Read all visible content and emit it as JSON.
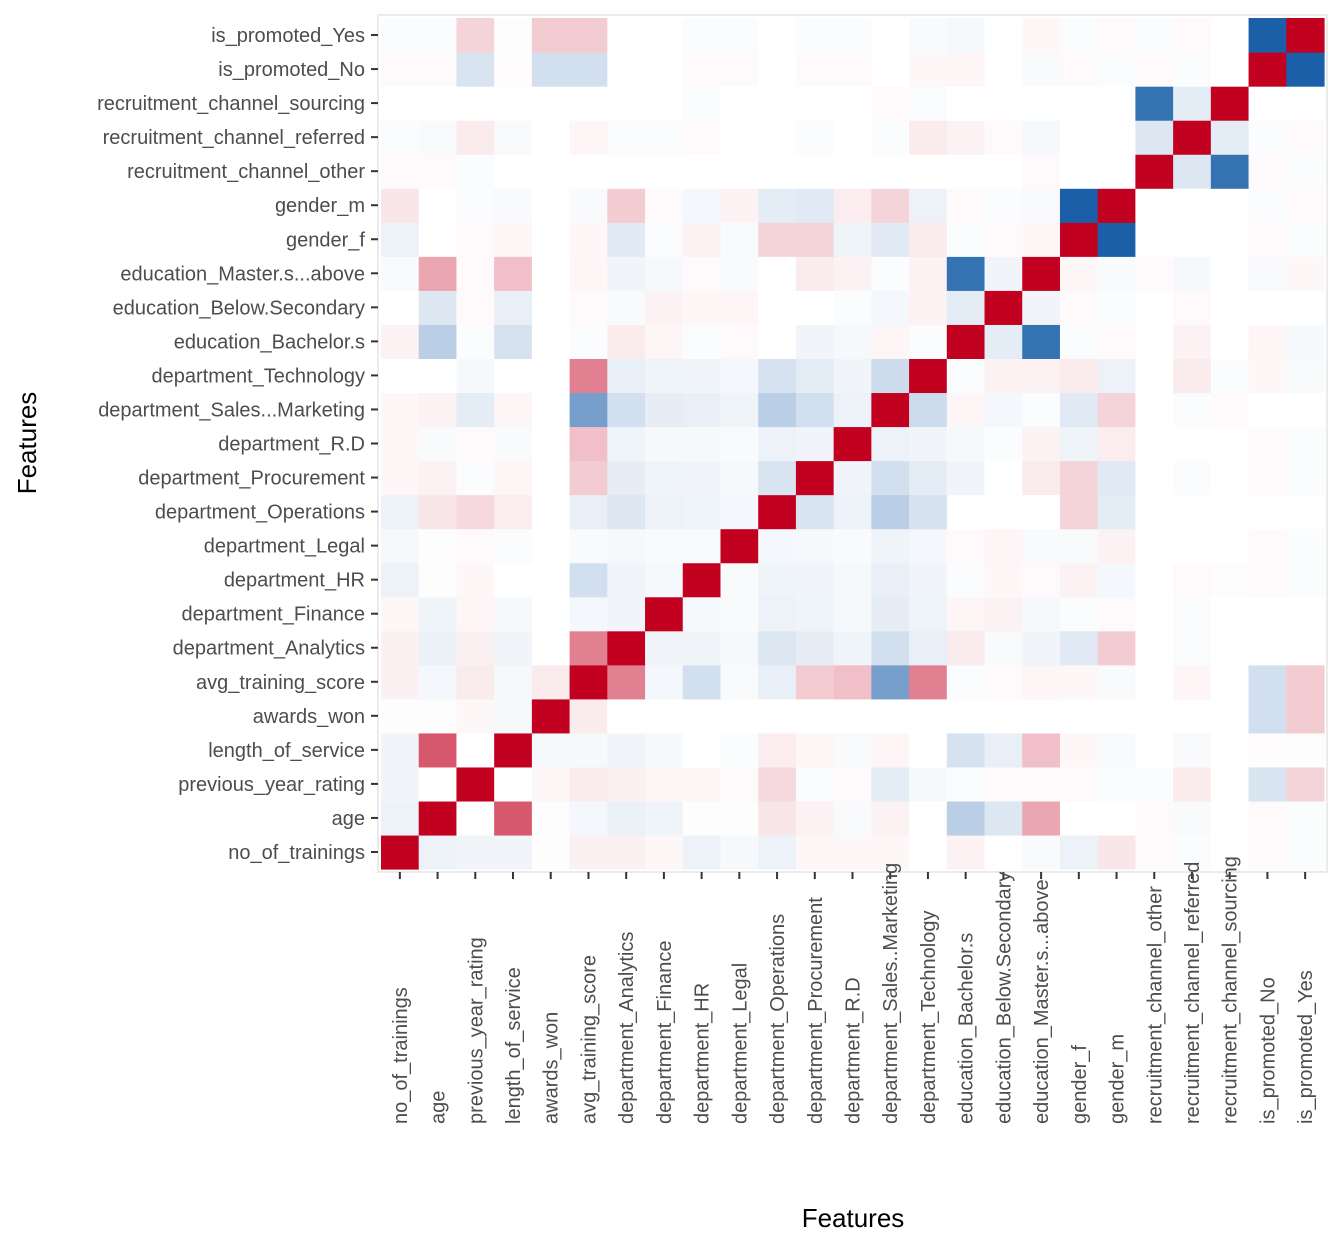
{
  "chart_data": {
    "type": "heatmap",
    "xlabel": "Features",
    "ylabel": "Features",
    "color_scale": {
      "low": "#1a5fa8",
      "mid": "#ffffff",
      "high": "#c20020",
      "range": [
        -1,
        1
      ]
    },
    "grid": false,
    "features": [
      "no_of_trainings",
      "age",
      "previous_year_rating",
      "length_of_service",
      "awards_won",
      "avg_training_score",
      "department_Analytics",
      "department_Finance",
      "department_HR",
      "department_Legal",
      "department_Operations",
      "department_Procurement",
      "department_R.D",
      "department_Sales...Marketing",
      "department_Technology",
      "education_Bachelor.s",
      "education_Below.Secondary",
      "education_Master.s...above",
      "gender_f",
      "gender_m",
      "recruitment_channel_other",
      "recruitment_channel_referred",
      "recruitment_channel_sourcing",
      "is_promoted_No",
      "is_promoted_Yes"
    ],
    "x_tick_labels": [
      "no_of_trainings",
      "age",
      "previous_year_rating",
      "length_of_service",
      "awards_won",
      "avg_training_score",
      "department_Analytics",
      "department_Finance",
      "department_HR",
      "department_Legal",
      "department_Operations",
      "department_Procurement",
      "department_R.D",
      "department_Sales..Marketing",
      "department_Technology",
      "education_Bachelor.s",
      "education_Below.Secondary",
      "education_Master.s...above",
      "gender_f",
      "gender_m",
      "recruitment_channel_other",
      "recruitment_channel_referred",
      "recruitment_channel_sourcing",
      "is_promoted_No",
      "is_promoted_Yes"
    ],
    "matrix": [
      [
        1.0,
        -0.08,
        -0.06,
        -0.06,
        -0.01,
        0.06,
        0.06,
        0.03,
        -0.08,
        -0.04,
        -0.08,
        0.03,
        0.03,
        0.03,
        0.0,
        0.05,
        0.0,
        -0.03,
        -0.08,
        0.1,
        0.02,
        -0.02,
        0.0,
        0.02,
        -0.02
      ],
      [
        -0.08,
        1.0,
        0.0,
        0.66,
        -0.01,
        -0.05,
        -0.09,
        -0.07,
        -0.01,
        -0.01,
        0.1,
        0.05,
        -0.03,
        0.05,
        0.0,
        -0.3,
        -0.15,
        0.35,
        0.0,
        0.0,
        0.02,
        -0.03,
        0.0,
        0.02,
        -0.02
      ],
      [
        -0.06,
        0.0,
        1.0,
        0.0,
        0.03,
        0.08,
        0.06,
        0.04,
        0.03,
        0.02,
        0.15,
        -0.02,
        0.02,
        -0.12,
        -0.04,
        -0.02,
        0.02,
        0.02,
        0.02,
        -0.02,
        -0.02,
        0.08,
        0.0,
        -0.17,
        0.17
      ],
      [
        -0.06,
        0.66,
        0.0,
        1.0,
        -0.04,
        -0.04,
        -0.06,
        -0.04,
        0.0,
        -0.02,
        0.07,
        0.04,
        -0.03,
        0.04,
        0.0,
        -0.18,
        -0.1,
        0.25,
        0.03,
        -0.03,
        0.0,
        -0.03,
        0.0,
        0.01,
        -0.01
      ],
      [
        -0.01,
        -0.01,
        0.03,
        -0.04,
        1.0,
        0.08,
        0.0,
        0.0,
        0.0,
        0.0,
        0.0,
        0.0,
        0.0,
        0.0,
        0.0,
        0.0,
        0.0,
        0.0,
        0.0,
        0.0,
        0.0,
        0.0,
        0.0,
        -0.2,
        0.2
      ],
      [
        0.06,
        -0.05,
        0.08,
        -0.04,
        0.08,
        1.0,
        0.5,
        -0.05,
        -0.2,
        -0.03,
        -0.1,
        0.2,
        0.25,
        -0.6,
        0.5,
        -0.02,
        0.02,
        0.04,
        0.03,
        -0.03,
        0.0,
        0.04,
        0.0,
        -0.2,
        0.2
      ],
      [
        0.06,
        -0.09,
        0.06,
        -0.06,
        0.0,
        0.5,
        1.0,
        -0.06,
        -0.06,
        -0.04,
        -0.15,
        -0.11,
        -0.07,
        -0.2,
        -0.1,
        0.08,
        -0.03,
        -0.06,
        -0.13,
        0.2,
        0.0,
        -0.02,
        0.0,
        0.0,
        0.0
      ],
      [
        0.03,
        -0.07,
        0.04,
        -0.04,
        0.0,
        -0.05,
        -0.06,
        1.0,
        -0.04,
        -0.03,
        -0.08,
        -0.07,
        -0.04,
        -0.11,
        -0.07,
        0.04,
        0.05,
        -0.04,
        -0.02,
        0.02,
        0.0,
        -0.02,
        0.0,
        0.0,
        0.0
      ],
      [
        -0.08,
        -0.01,
        0.03,
        0.0,
        0.0,
        -0.2,
        -0.06,
        -0.04,
        1.0,
        -0.03,
        -0.07,
        -0.06,
        -0.04,
        -0.1,
        -0.06,
        -0.02,
        0.03,
        0.02,
        0.05,
        -0.05,
        0.0,
        0.02,
        -0.01,
        0.02,
        -0.02
      ],
      [
        -0.04,
        -0.01,
        0.02,
        -0.02,
        0.0,
        -0.03,
        -0.04,
        -0.03,
        -0.03,
        1.0,
        -0.05,
        -0.04,
        -0.03,
        -0.07,
        -0.05,
        0.02,
        0.04,
        -0.03,
        -0.03,
        0.05,
        0.0,
        0.0,
        0.0,
        0.02,
        -0.02
      ],
      [
        -0.08,
        0.1,
        0.15,
        0.07,
        0.0,
        -0.1,
        -0.15,
        -0.08,
        -0.07,
        -0.05,
        1.0,
        -0.17,
        -0.08,
        -0.3,
        -0.18,
        0.0,
        0.0,
        0.0,
        0.17,
        -0.12,
        0.0,
        0.0,
        0.0,
        0.0,
        0.0
      ],
      [
        0.03,
        0.05,
        -0.02,
        0.04,
        0.0,
        0.2,
        -0.11,
        -0.07,
        -0.06,
        -0.04,
        -0.17,
        1.0,
        -0.06,
        -0.2,
        -0.12,
        -0.06,
        0.0,
        0.08,
        0.17,
        -0.13,
        0.0,
        -0.02,
        0.0,
        0.02,
        -0.02
      ],
      [
        0.03,
        -0.03,
        0.02,
        -0.03,
        0.0,
        0.25,
        -0.07,
        -0.04,
        -0.04,
        -0.03,
        -0.08,
        -0.06,
        1.0,
        -0.08,
        -0.06,
        -0.04,
        -0.02,
        0.05,
        -0.07,
        0.07,
        0.0,
        0.0,
        0.0,
        0.02,
        -0.02
      ],
      [
        0.03,
        0.05,
        -0.12,
        0.04,
        0.0,
        -0.6,
        -0.2,
        -0.11,
        -0.1,
        -0.07,
        -0.3,
        -0.2,
        -0.08,
        1.0,
        -0.22,
        0.04,
        -0.05,
        -0.02,
        -0.13,
        0.17,
        0.0,
        -0.02,
        0.02,
        0.0,
        0.0
      ],
      [
        0.0,
        0.0,
        -0.04,
        0.0,
        0.0,
        0.5,
        -0.1,
        -0.07,
        -0.06,
        -0.05,
        -0.18,
        -0.12,
        -0.06,
        -0.22,
        1.0,
        -0.02,
        0.05,
        0.05,
        0.08,
        -0.08,
        0.0,
        0.08,
        -0.02,
        0.03,
        -0.03
      ],
      [
        0.05,
        -0.3,
        -0.02,
        -0.18,
        0.0,
        -0.02,
        0.08,
        0.04,
        -0.02,
        0.02,
        0.0,
        -0.06,
        -0.04,
        0.04,
        -0.02,
        1.0,
        -0.12,
        -0.88,
        -0.02,
        0.02,
        0.0,
        0.05,
        0.0,
        0.04,
        -0.04
      ],
      [
        0.0,
        -0.15,
        0.02,
        -0.1,
        0.0,
        0.02,
        -0.03,
        0.05,
        0.03,
        0.04,
        0.0,
        0.0,
        -0.02,
        -0.05,
        0.05,
        -0.12,
        1.0,
        -0.06,
        0.02,
        -0.02,
        0.0,
        0.02,
        0.0,
        0.0,
        0.0
      ],
      [
        -0.03,
        0.35,
        0.02,
        0.25,
        0.0,
        0.04,
        -0.06,
        -0.04,
        0.02,
        -0.03,
        0.0,
        0.08,
        0.05,
        -0.02,
        0.05,
        -0.88,
        -0.06,
        1.0,
        0.03,
        -0.03,
        0.02,
        -0.04,
        0.0,
        -0.03,
        0.03
      ],
      [
        -0.08,
        0.0,
        0.02,
        0.03,
        0.0,
        0.03,
        -0.13,
        -0.02,
        0.05,
        -0.03,
        0.17,
        0.17,
        -0.07,
        -0.13,
        0.08,
        -0.02,
        0.02,
        0.03,
        1.0,
        -1.0,
        0.0,
        0.0,
        0.0,
        0.02,
        -0.02
      ],
      [
        0.1,
        0.0,
        -0.02,
        -0.03,
        0.0,
        -0.03,
        0.2,
        0.02,
        -0.05,
        0.05,
        -0.12,
        -0.13,
        0.07,
        0.17,
        -0.08,
        0.02,
        -0.02,
        -0.03,
        -1.0,
        1.0,
        0.0,
        0.0,
        0.0,
        -0.02,
        0.02
      ],
      [
        0.02,
        0.02,
        -0.02,
        0.0,
        0.0,
        0.0,
        0.0,
        0.0,
        0.0,
        0.0,
        0.0,
        0.0,
        0.0,
        0.0,
        0.0,
        0.0,
        0.0,
        0.02,
        0.0,
        0.0,
        1.0,
        -0.15,
        -0.88,
        0.02,
        -0.02
      ],
      [
        -0.02,
        -0.03,
        0.08,
        -0.03,
        0.0,
        0.04,
        -0.02,
        -0.02,
        0.02,
        0.0,
        0.0,
        -0.02,
        0.0,
        -0.02,
        0.08,
        0.05,
        0.02,
        -0.04,
        0.0,
        0.0,
        -0.15,
        1.0,
        -0.12,
        -0.02,
        0.02
      ],
      [
        0.0,
        0.0,
        0.0,
        0.0,
        0.0,
        0.0,
        0.0,
        0.0,
        -0.02,
        0.0,
        0.0,
        0.0,
        0.0,
        0.02,
        -0.02,
        0.0,
        0.0,
        0.0,
        0.0,
        0.0,
        -0.88,
        -0.12,
        1.0,
        0.0,
        0.0
      ],
      [
        0.02,
        0.02,
        -0.17,
        0.01,
        -0.2,
        -0.2,
        0.0,
        0.0,
        0.02,
        0.02,
        0.0,
        0.02,
        0.02,
        0.0,
        0.03,
        0.04,
        0.0,
        -0.03,
        0.02,
        -0.02,
        0.02,
        -0.02,
        0.0,
        1.0,
        -1.0
      ],
      [
        -0.02,
        -0.02,
        0.17,
        -0.01,
        0.2,
        0.2,
        0.0,
        0.0,
        -0.02,
        -0.02,
        0.0,
        -0.02,
        -0.02,
        0.0,
        -0.03,
        -0.04,
        0.0,
        0.03,
        -0.02,
        0.02,
        -0.02,
        0.02,
        0.0,
        -1.0,
        1.0
      ]
    ]
  }
}
